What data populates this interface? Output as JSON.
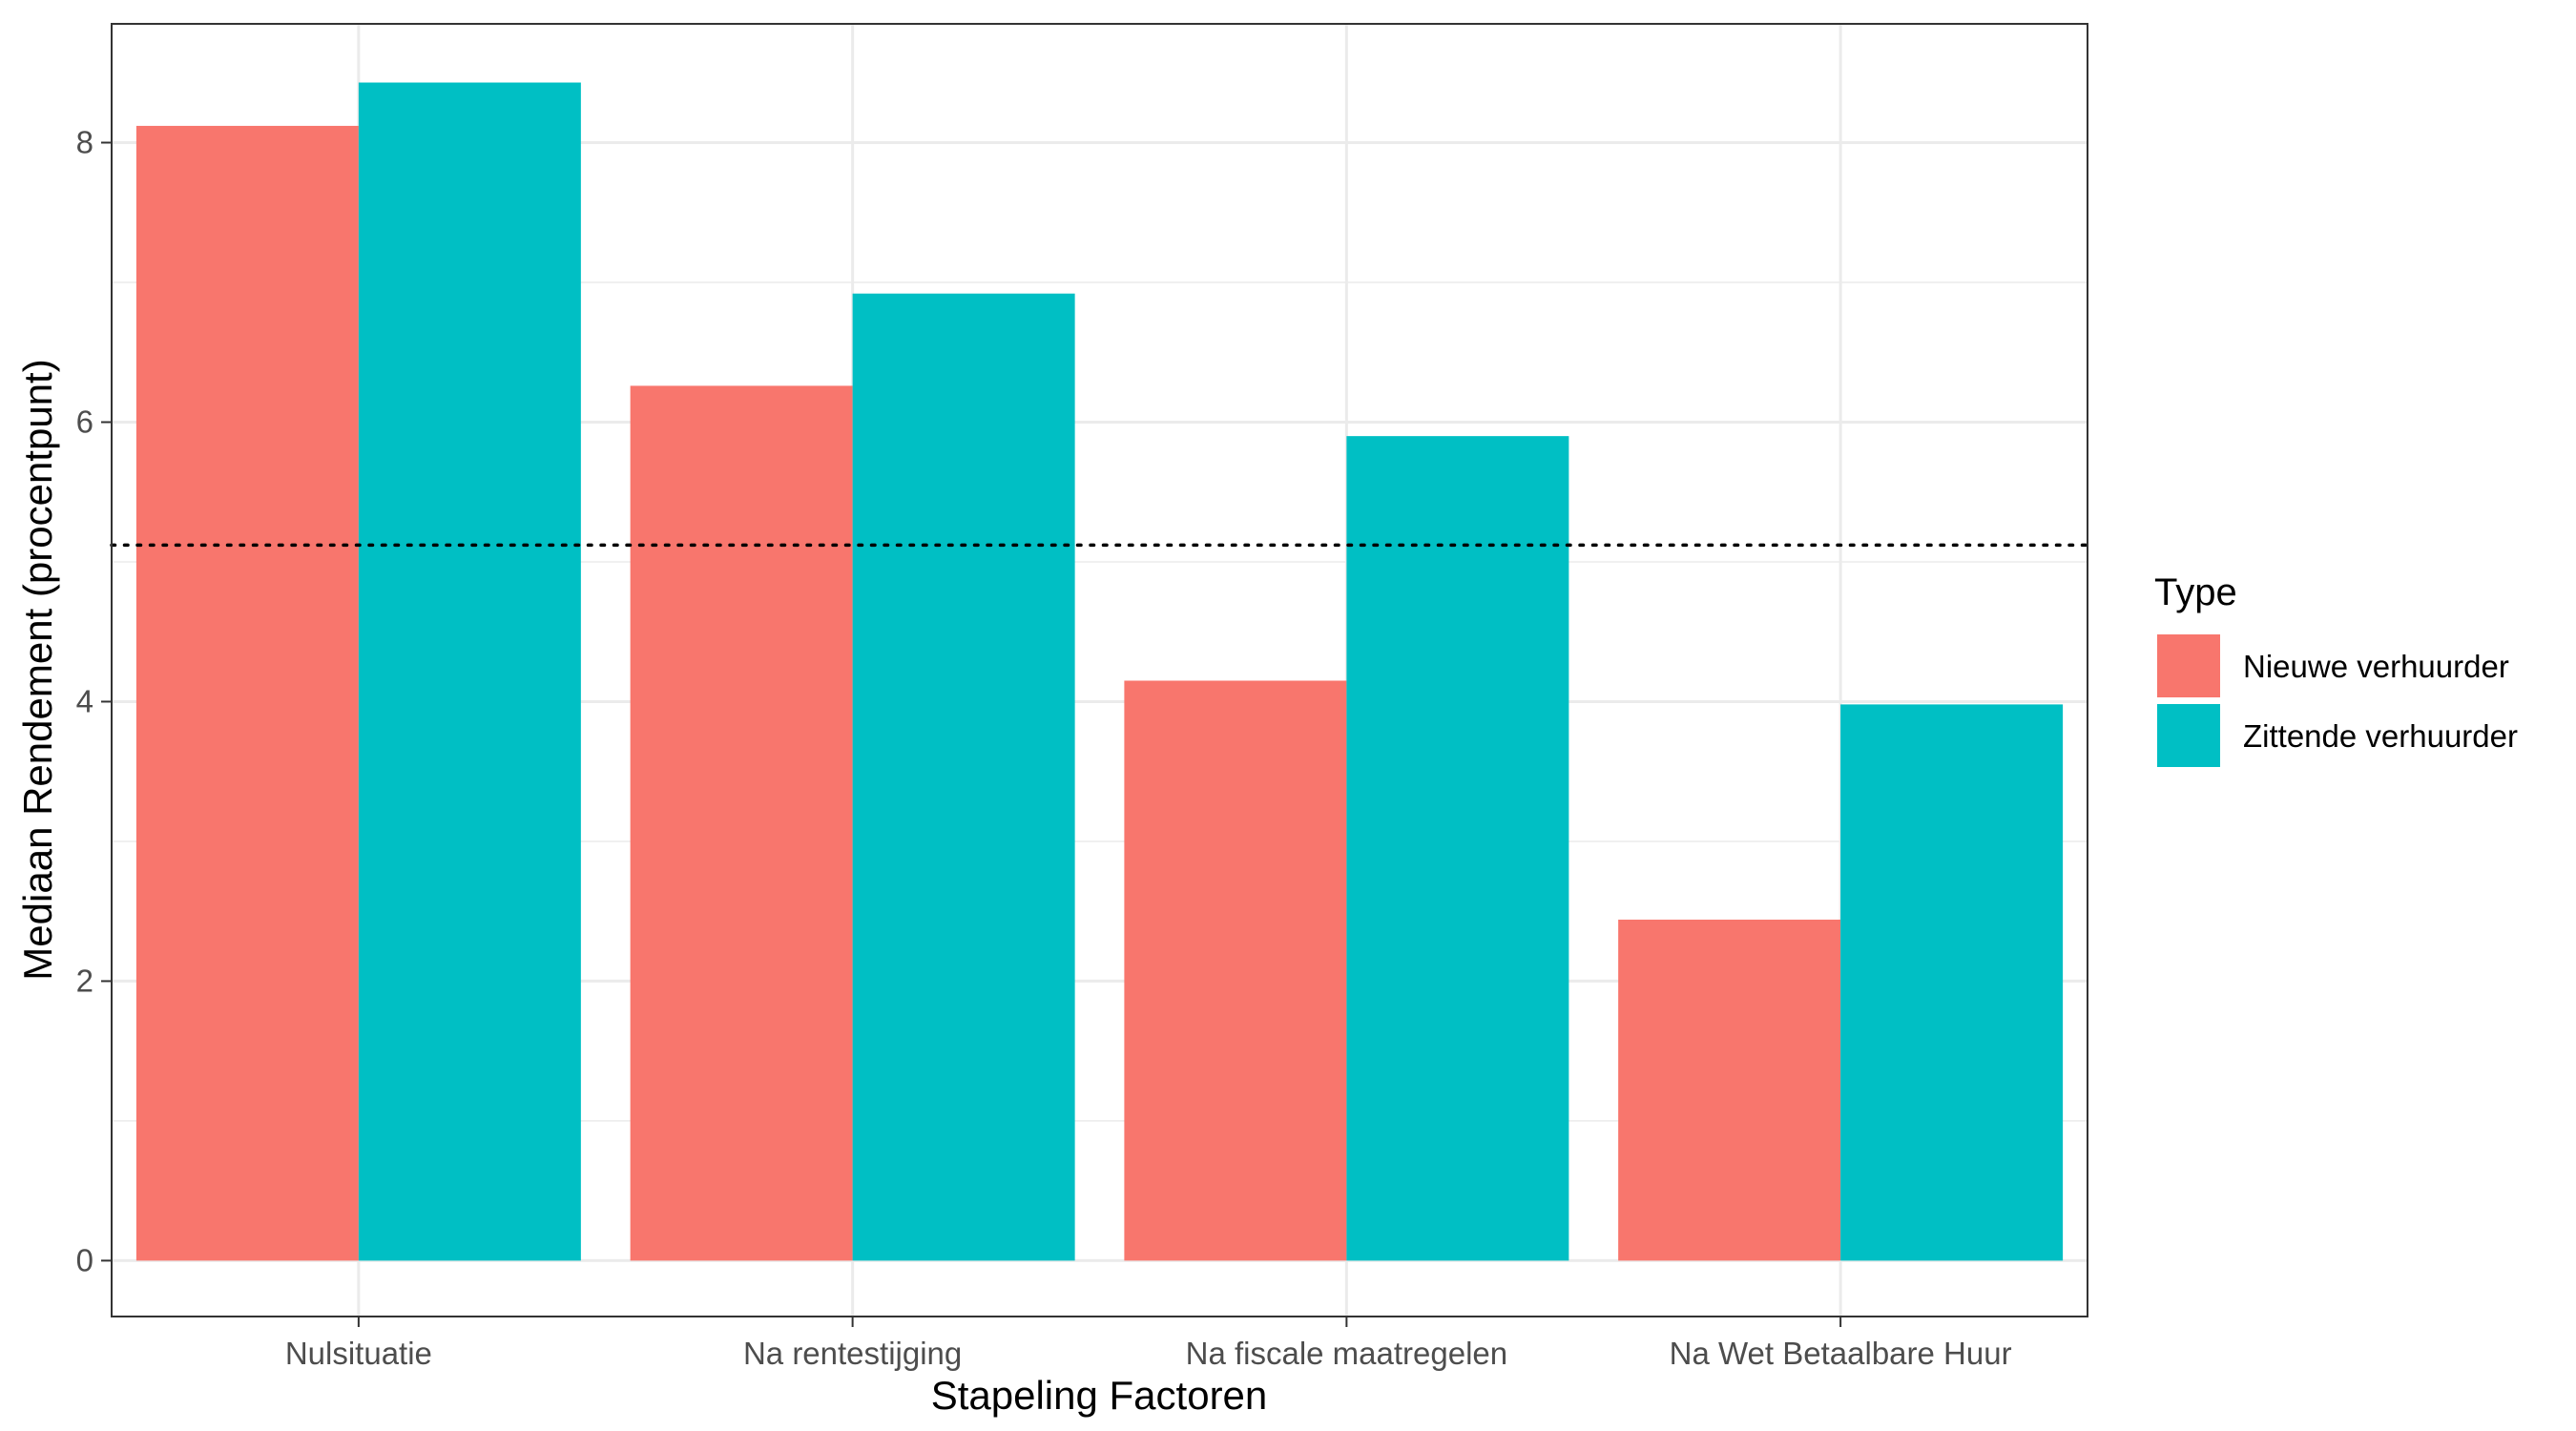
{
  "chart_data": {
    "type": "bar",
    "categories": [
      "Nulsituatie",
      "Na rentestijging",
      "Na fiscale maatregelen",
      "Na Wet Betaalbare Huur"
    ],
    "series": [
      {
        "name": "Nieuwe verhuurder",
        "color": "#F8766D",
        "values": [
          8.12,
          6.26,
          4.15,
          2.44
        ]
      },
      {
        "name": "Zittende verhuurder",
        "color": "#00BFC4",
        "values": [
          8.43,
          6.92,
          5.9,
          3.98
        ]
      }
    ],
    "reference_line": {
      "y": 5.12,
      "style": "dotted",
      "color": "#000000"
    },
    "xlabel": "Stapeling Factoren",
    "ylabel": "Mediaan Rendement (procentpunt)",
    "ylim": [
      -0.4,
      8.85
    ],
    "yticks": [
      0,
      2,
      4,
      6,
      8
    ],
    "ytick_labels": [
      "0",
      "2",
      "4",
      "6",
      "8"
    ],
    "grid": true,
    "legend": {
      "title": "Type",
      "position": "right"
    }
  }
}
